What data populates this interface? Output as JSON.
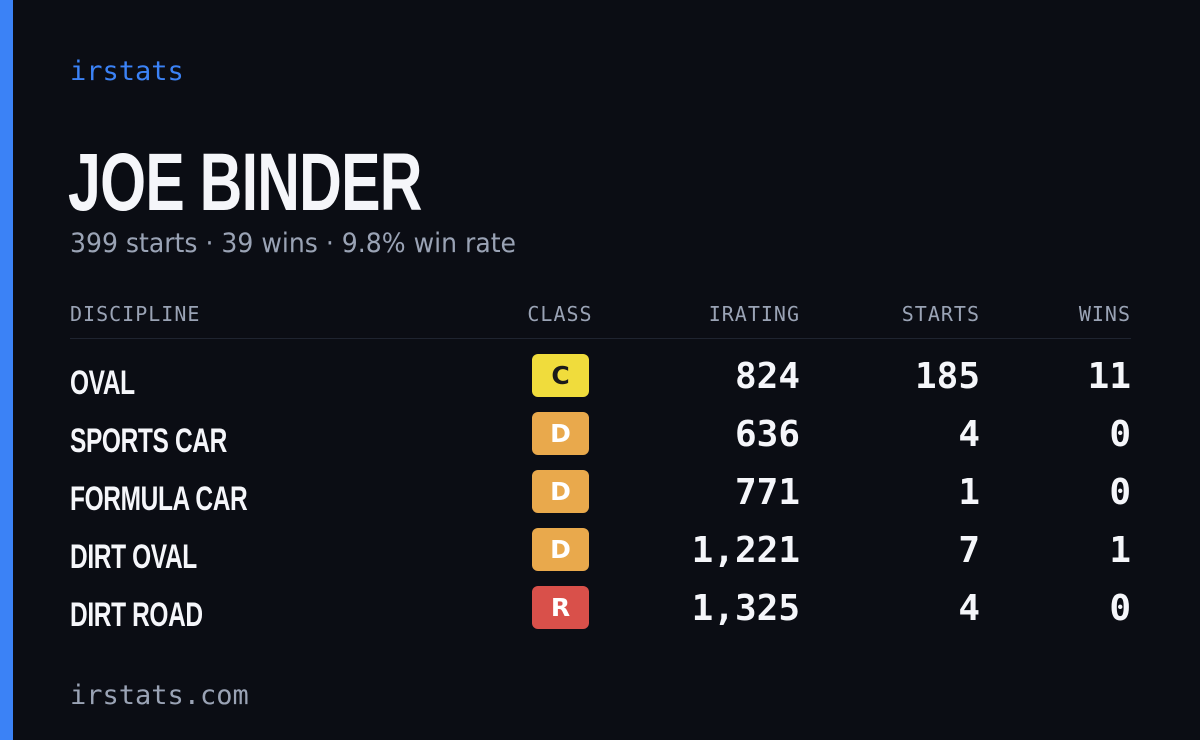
{
  "brand": "irstats",
  "driver_name": "JOE BINDER",
  "summary": "399 starts · 39 wins · 9.8% win rate",
  "table": {
    "headers": {
      "discipline": "DISCIPLINE",
      "class": "CLASS",
      "irating": "IRATING",
      "starts": "STARTS",
      "wins": "WINS"
    },
    "rows": [
      {
        "discipline": "OVAL",
        "class": "C",
        "irating": "824",
        "starts": "185",
        "wins": "11",
        "class_color": "#f0dc3c",
        "class_text_color": "#1a1a1a"
      },
      {
        "discipline": "SPORTS CAR",
        "class": "D",
        "irating": "636",
        "starts": "4",
        "wins": "0",
        "class_color": "#e9a94c",
        "class_text_color": "#ffffff"
      },
      {
        "discipline": "FORMULA CAR",
        "class": "D",
        "irating": "771",
        "starts": "1",
        "wins": "0",
        "class_color": "#e9a94c",
        "class_text_color": "#ffffff"
      },
      {
        "discipline": "DIRT OVAL",
        "class": "D",
        "irating": "1,221",
        "starts": "7",
        "wins": "1",
        "class_color": "#e9a94c",
        "class_text_color": "#ffffff"
      },
      {
        "discipline": "DIRT ROAD",
        "class": "R",
        "irating": "1,325",
        "starts": "4",
        "wins": "0",
        "class_color": "#d9504a",
        "class_text_color": "#ffffff"
      }
    ]
  },
  "footer": "irstats.com",
  "colors": {
    "background": "#0b0d14",
    "accent": "#3b82f6",
    "text_primary": "#f5f6fa",
    "text_muted": "#9aa3b5"
  }
}
